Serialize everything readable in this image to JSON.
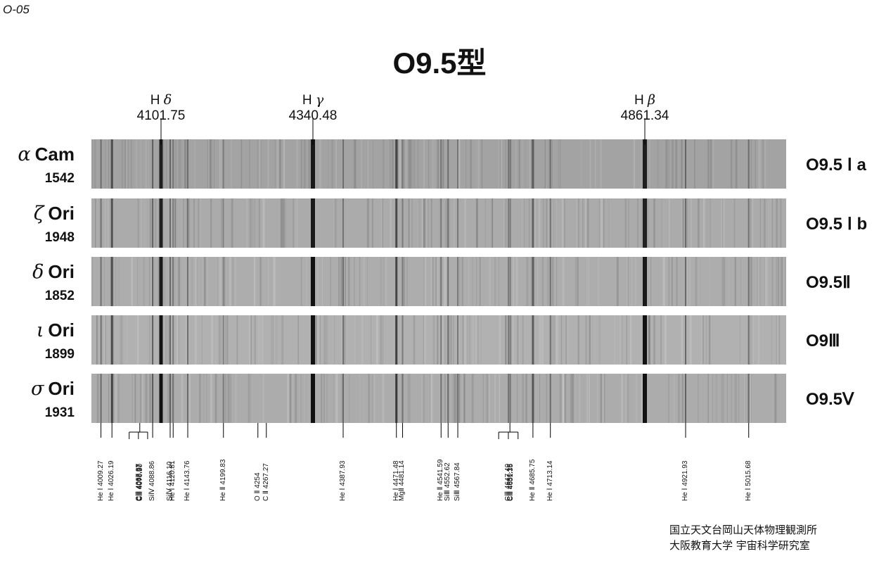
{
  "page_id": "O-05",
  "title": "O9.5型",
  "balmer_lines": [
    {
      "label": "Hδ",
      "symbol": "H",
      "greek": "δ",
      "wavelength": "4101.75"
    },
    {
      "label": "Hγ",
      "symbol": "H",
      "greek": "γ",
      "wavelength": "4340.48"
    },
    {
      "label": "Hβ",
      "symbol": "H",
      "greek": "β",
      "wavelength": "4861.34"
    }
  ],
  "stars": [
    {
      "greek": "α",
      "name": "Cam",
      "number": "1542",
      "type": "O9.5 Ⅰ a",
      "strength": 0.95,
      "base": "#a3a3a3"
    },
    {
      "greek": "ζ",
      "name": "Ori",
      "number": "1948",
      "type": "O9.5 Ⅰ b",
      "strength": 0.95,
      "base": "#ababab"
    },
    {
      "greek": "δ",
      "name": "Ori",
      "number": "1852",
      "type": "O9.5Ⅱ",
      "strength": 1.0,
      "base": "#adadad"
    },
    {
      "greek": "ι",
      "name": "Ori",
      "number": "1899",
      "type": "O9Ⅲ",
      "strength": 1.05,
      "base": "#b1b1b1"
    },
    {
      "greek": "σ",
      "name": "Ori",
      "number": "1931",
      "type": "O9.5Ⅴ",
      "strength": 1.1,
      "base": "#acacac"
    }
  ],
  "line_ids": [
    {
      "wavelength": 4009.27,
      "label": "He Ⅰ  4009.27"
    },
    {
      "wavelength": 4026.19,
      "label": "He Ⅰ  4026.19"
    },
    {
      "wavelength": 4067.87,
      "label": "CⅢ  4067.87",
      "group": "c3a"
    },
    {
      "wavelength": 4068.97,
      "label": "CⅢ  4068.97",
      "group": "c3a"
    },
    {
      "wavelength": 4070.3,
      "label": "CⅢ  4070.30",
      "group": "c3a"
    },
    {
      "wavelength": 4088.86,
      "label": "SiⅣ  4088.86"
    },
    {
      "wavelength": 4116.1,
      "label": "SiⅣ  4116.10"
    },
    {
      "wavelength": 4120.81,
      "label": "He Ⅰ  4120.81"
    },
    {
      "wavelength": 4143.76,
      "label": "He Ⅰ  4143.76"
    },
    {
      "wavelength": 4199.83,
      "label": "He Ⅱ  4199.83"
    },
    {
      "wavelength": 4254,
      "label": "O Ⅱ  4254"
    },
    {
      "wavelength": 4267.27,
      "label": "C Ⅱ  4267.27"
    },
    {
      "wavelength": 4387.93,
      "label": "He Ⅰ  4387.93"
    },
    {
      "wavelength": 4471.48,
      "label": "He Ⅰ  4471.48"
    },
    {
      "wavelength": 4481.14,
      "label": "MgⅡ  4481.14"
    },
    {
      "wavelength": 4541.59,
      "label": "He Ⅱ  4541.59"
    },
    {
      "wavelength": 4552.62,
      "label": "SiⅢ  4552.62"
    },
    {
      "wavelength": 4567.84,
      "label": "SiⅢ  4567.84"
    },
    {
      "wavelength": 4647.4,
      "label": "CⅢ  4647.40",
      "group": "c3b"
    },
    {
      "wavelength": 4650.16,
      "label": "CⅢ  4650.16",
      "group": "c3b"
    },
    {
      "wavelength": 4651.35,
      "label": "CⅢ  4651.35",
      "group": "c3b"
    },
    {
      "wavelength": 4685.75,
      "label": "He Ⅱ  4685.75"
    },
    {
      "wavelength": 4713.14,
      "label": "He Ⅰ  4713.14"
    },
    {
      "wavelength": 4921.93,
      "label": "He Ⅰ  4921.93"
    },
    {
      "wavelength": 5015.68,
      "label": "He Ⅰ  5015.68"
    }
  ],
  "credit": [
    "国立天文台岡山天体物理観測所",
    "大阪教育大学 宇宙科学研究室"
  ]
}
